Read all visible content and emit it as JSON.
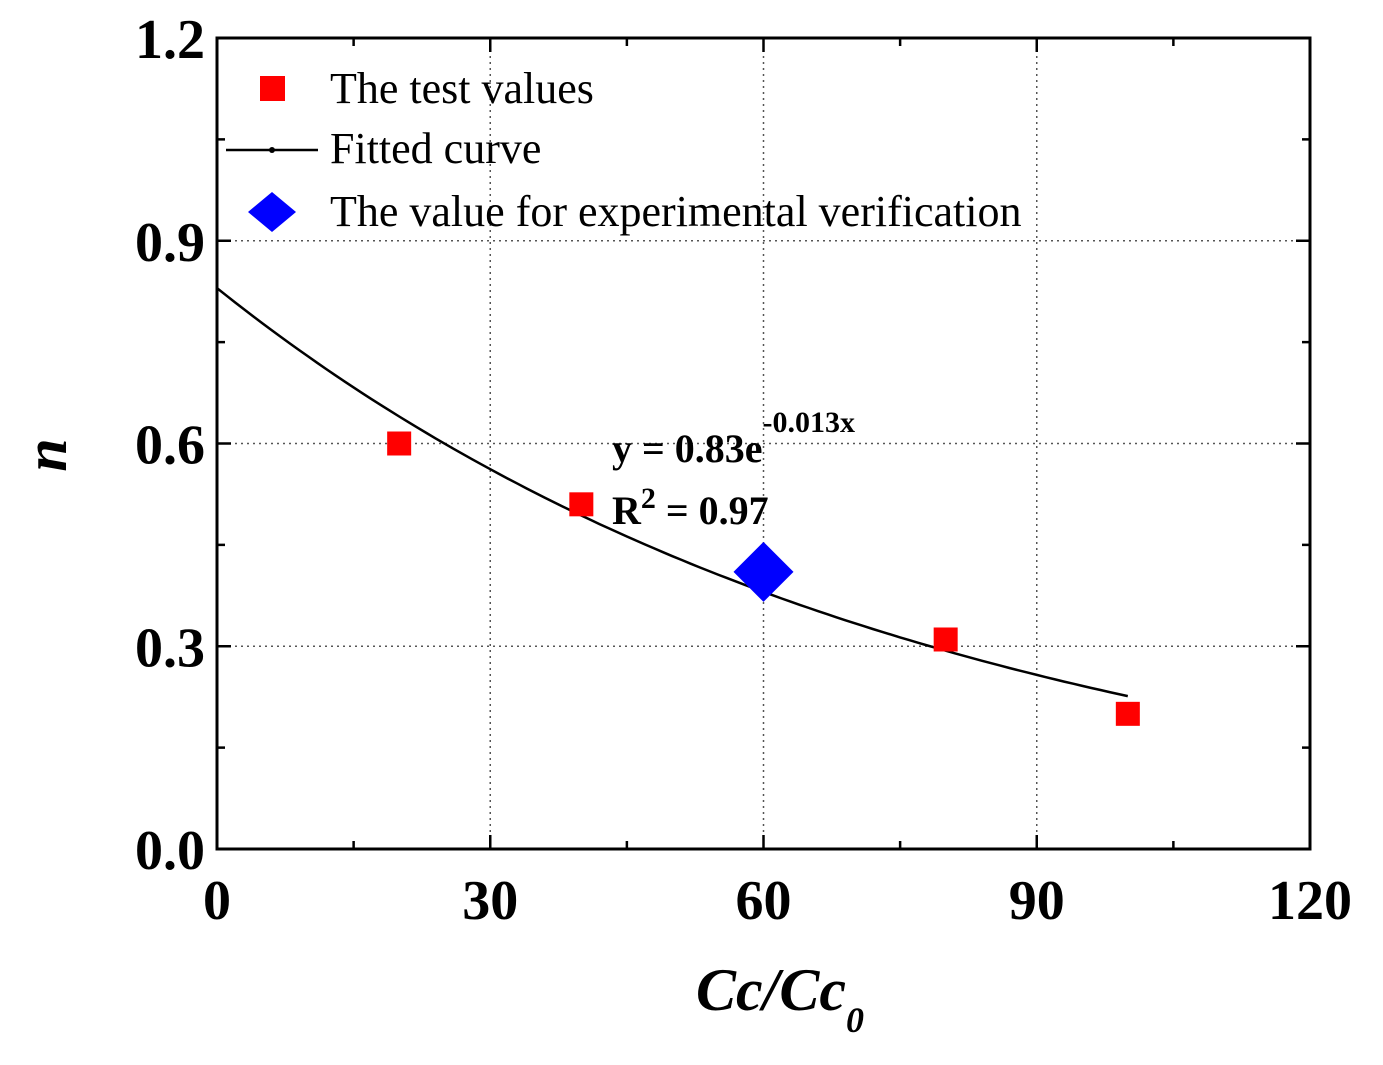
{
  "chart_data": {
    "type": "scatter",
    "xlabel": {
      "main": "Cc/Cc",
      "sub": "0"
    },
    "ylabel": "n",
    "xlim": [
      0,
      120
    ],
    "ylim": [
      0,
      1.2
    ],
    "xticks": [
      0,
      30,
      60,
      90,
      120
    ],
    "xtick_labels": [
      "0",
      "30",
      "60",
      "90",
      "120"
    ],
    "yticks": [
      0.0,
      0.3,
      0.6,
      0.9,
      1.2
    ],
    "ytick_labels": [
      "0.0",
      "0.3",
      "0.6",
      "0.9",
      "1.2"
    ],
    "grid": true,
    "legend_position": "top-left",
    "series": [
      {
        "name": "The test values",
        "kind": "scatter",
        "marker": "square",
        "color": "#ff0000",
        "x": [
          20,
          40,
          80,
          100
        ],
        "y": [
          0.6,
          0.51,
          0.31,
          0.2
        ]
      },
      {
        "name": "Fitted curve",
        "kind": "line",
        "color": "#000000",
        "equation": {
          "a": 0.83,
          "b": -0.013
        },
        "x_range": [
          0,
          100
        ]
      },
      {
        "name": "The value for experimental verification",
        "kind": "scatter",
        "marker": "diamond",
        "color": "#0000ff",
        "x": [
          60
        ],
        "y": [
          0.41
        ]
      }
    ],
    "annotations": {
      "equation_main": "y = 0.83e",
      "equation_exp": "-0.013x",
      "r2_main": "R",
      "r2_sup": "2",
      "r2_value": " = 0.97"
    }
  }
}
